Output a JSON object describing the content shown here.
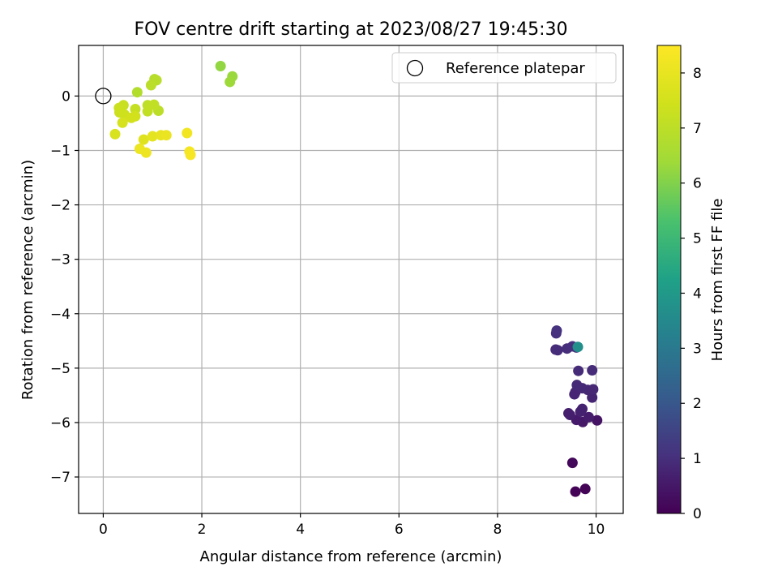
{
  "chart_data": {
    "type": "scatter",
    "title": "FOV centre drift starting at 2023/08/27 19:45:30",
    "xlabel": "Angular distance from reference (arcmin)",
    "ylabel": "Rotation from reference (arcmin)",
    "xlim": [
      -0.5,
      10.55
    ],
    "ylim": [
      -7.67,
      0.93
    ],
    "xticks": [
      0,
      2,
      4,
      6,
      8,
      10
    ],
    "yticks": [
      0,
      -1,
      -2,
      -3,
      -4,
      -5,
      -6,
      -7
    ],
    "xtick_labels": [
      "0",
      "2",
      "4",
      "6",
      "8",
      "10"
    ],
    "ytick_labels": [
      "0",
      "−1",
      "−2",
      "−3",
      "−4",
      "−5",
      "−6",
      "−7"
    ],
    "grid": true,
    "legend": {
      "position": "upper-right",
      "entries": [
        {
          "label": "Reference platepar",
          "marker": "open-circle"
        }
      ]
    },
    "reference_point": {
      "x": 0,
      "y": 0
    },
    "colorbar": {
      "label": "Hours from first FF file",
      "colormap": "viridis",
      "range": [
        0,
        8.5
      ],
      "ticks": [
        0,
        1,
        2,
        3,
        4,
        5,
        6,
        7,
        8
      ],
      "tick_labels": [
        "0",
        "1",
        "2",
        "3",
        "4",
        "5",
        "6",
        "7",
        "8"
      ]
    },
    "points": [
      {
        "x": 9.58,
        "y": -7.27,
        "h": 0.05
      },
      {
        "x": 9.78,
        "y": -7.22,
        "h": 0.08
      },
      {
        "x": 9.52,
        "y": -6.74,
        "h": 0.15
      },
      {
        "x": 10.02,
        "y": -5.96,
        "h": 0.4
      },
      {
        "x": 9.73,
        "y": -5.99,
        "h": 0.5
      },
      {
        "x": 9.6,
        "y": -5.95,
        "h": 0.55
      },
      {
        "x": 9.85,
        "y": -5.9,
        "h": 0.6
      },
      {
        "x": 9.47,
        "y": -5.86,
        "h": 0.62
      },
      {
        "x": 9.44,
        "y": -5.83,
        "h": 0.65
      },
      {
        "x": 9.68,
        "y": -5.8,
        "h": 0.7
      },
      {
        "x": 9.72,
        "y": -5.75,
        "h": 0.72
      },
      {
        "x": 9.92,
        "y": -5.54,
        "h": 0.75
      },
      {
        "x": 9.56,
        "y": -5.48,
        "h": 0.78
      },
      {
        "x": 9.58,
        "y": -5.44,
        "h": 0.8
      },
      {
        "x": 9.83,
        "y": -5.4,
        "h": 0.82
      },
      {
        "x": 9.94,
        "y": -5.39,
        "h": 0.84
      },
      {
        "x": 9.72,
        "y": -5.37,
        "h": 0.86
      },
      {
        "x": 9.61,
        "y": -5.31,
        "h": 0.88
      },
      {
        "x": 9.64,
        "y": -5.05,
        "h": 0.9
      },
      {
        "x": 9.92,
        "y": -5.04,
        "h": 0.92
      },
      {
        "x": 9.18,
        "y": -4.66,
        "h": 0.94
      },
      {
        "x": 9.22,
        "y": -4.67,
        "h": 0.96
      },
      {
        "x": 9.41,
        "y": -4.64,
        "h": 0.98
      },
      {
        "x": 9.52,
        "y": -4.6,
        "h": 1.0
      },
      {
        "x": 9.6,
        "y": -4.62,
        "h": 1.02
      },
      {
        "x": 9.19,
        "y": -4.36,
        "h": 1.05
      },
      {
        "x": 9.2,
        "y": -4.31,
        "h": 1.07
      },
      {
        "x": 9.63,
        "y": -4.61,
        "h": 3.7
      },
      {
        "x": 2.38,
        "y": 0.55,
        "h": 6.2
      },
      {
        "x": 2.62,
        "y": 0.36,
        "h": 6.3
      },
      {
        "x": 2.57,
        "y": 0.26,
        "h": 6.35
      },
      {
        "x": 0.69,
        "y": 0.07,
        "h": 6.8
      },
      {
        "x": 1.04,
        "y": 0.31,
        "h": 6.85
      },
      {
        "x": 1.08,
        "y": 0.29,
        "h": 6.9
      },
      {
        "x": 0.97,
        "y": 0.2,
        "h": 6.95
      },
      {
        "x": 1.12,
        "y": -0.27,
        "h": 7.0
      },
      {
        "x": 0.9,
        "y": -0.17,
        "h": 7.05
      },
      {
        "x": 1.03,
        "y": -0.16,
        "h": 7.1
      },
      {
        "x": 0.9,
        "y": -0.28,
        "h": 7.15
      },
      {
        "x": 0.65,
        "y": -0.24,
        "h": 7.2
      },
      {
        "x": 0.41,
        "y": -0.17,
        "h": 7.25
      },
      {
        "x": 0.32,
        "y": -0.22,
        "h": 7.3
      },
      {
        "x": 0.33,
        "y": -0.3,
        "h": 7.35
      },
      {
        "x": 0.43,
        "y": -0.34,
        "h": 7.4
      },
      {
        "x": 0.65,
        "y": -0.37,
        "h": 7.45
      },
      {
        "x": 0.57,
        "y": -0.4,
        "h": 7.5
      },
      {
        "x": 0.39,
        "y": -0.49,
        "h": 7.55
      },
      {
        "x": 0.24,
        "y": -0.7,
        "h": 7.65
      },
      {
        "x": 0.82,
        "y": -0.8,
        "h": 7.8
      },
      {
        "x": 1.0,
        "y": -0.74,
        "h": 7.9
      },
      {
        "x": 1.17,
        "y": -0.72,
        "h": 8.0
      },
      {
        "x": 1.28,
        "y": -0.72,
        "h": 8.05
      },
      {
        "x": 0.74,
        "y": -0.97,
        "h": 8.1
      },
      {
        "x": 0.87,
        "y": -1.04,
        "h": 8.15
      },
      {
        "x": 1.7,
        "y": -0.68,
        "h": 8.25
      },
      {
        "x": 1.75,
        "y": -1.02,
        "h": 8.3
      },
      {
        "x": 1.77,
        "y": -1.08,
        "h": 8.35
      }
    ]
  }
}
